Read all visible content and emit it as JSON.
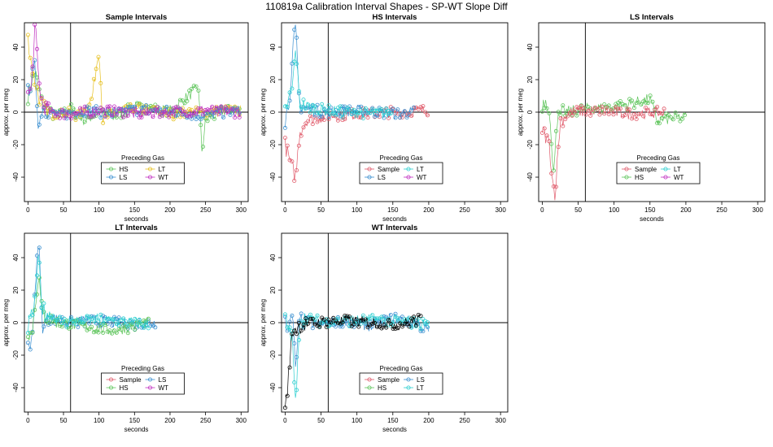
{
  "title": "110819a   Calibration Interval Shapes - SP-WT Slope Diff",
  "colors": {
    "Sample": "#e05a6a",
    "HS": "#5dc45a",
    "LS": "#3a8fd0",
    "LT": "#2ccfd0",
    "WT": "#c030c0",
    "WTline": "#000000",
    "LTyellow": "#e6c020"
  },
  "chart_data": [
    {
      "type": "scatter",
      "title": "Sample Intervals",
      "xlabel": "seconds",
      "ylabel": "approx. per meg",
      "xlim": [
        -5,
        310
      ],
      "ylim": [
        -55,
        55
      ],
      "xticks": [
        0,
        50,
        100,
        150,
        200,
        250,
        300
      ],
      "yticks": [
        -40,
        -20,
        0,
        20,
        40
      ],
      "hline": 0,
      "vline": 60,
      "legend": {
        "title": "Preceding Gas",
        "entries": [
          "HS",
          "LT",
          "LS",
          "WT"
        ],
        "position": "bottom-center"
      },
      "series": [
        {
          "name": "HS",
          "x": [
            0,
            5,
            10,
            15,
            20,
            30,
            40,
            60,
            80,
            100,
            120,
            150,
            200,
            240,
            245,
            250,
            280,
            300
          ],
          "y": [
            10,
            18,
            25,
            14,
            5,
            0,
            -3,
            2,
            -5,
            0,
            -3,
            3,
            1,
            15,
            -25,
            -5,
            2,
            0
          ]
        },
        {
          "name": "LT",
          "x": [
            0,
            5,
            10,
            15,
            20,
            30,
            50,
            70,
            90,
            100,
            105,
            120,
            150,
            200,
            250,
            300
          ],
          "y": [
            45,
            30,
            18,
            10,
            4,
            -1,
            0,
            -2,
            8,
            40,
            -5,
            0,
            2,
            -1,
            0,
            1
          ]
        },
        {
          "name": "LS",
          "x": [
            0,
            5,
            10,
            15,
            20,
            40,
            80,
            120,
            160,
            200,
            250,
            300
          ],
          "y": [
            12,
            20,
            28,
            -10,
            3,
            -2,
            1,
            -1,
            2,
            0,
            -2,
            1
          ]
        },
        {
          "name": "WT",
          "x": [
            0,
            5,
            10,
            15,
            20,
            30,
            60,
            100,
            150,
            200,
            250,
            300
          ],
          "y": [
            10,
            15,
            55,
            20,
            5,
            0,
            -1,
            1,
            -1,
            0,
            1,
            0
          ]
        }
      ]
    },
    {
      "type": "scatter",
      "title": "HS Intervals",
      "xlabel": "seconds",
      "ylabel": "approx. per meg",
      "xlim": [
        -5,
        310
      ],
      "ylim": [
        -55,
        55
      ],
      "xticks": [
        0,
        50,
        100,
        150,
        200,
        250,
        300
      ],
      "yticks": [
        -40,
        -20,
        0,
        20,
        40
      ],
      "hline": 0,
      "vline": 60,
      "legend": {
        "title": "Preceding Gas",
        "entries": [
          "Sample",
          "LT",
          "LS",
          "WT"
        ],
        "position": "bottom-center"
      },
      "series": [
        {
          "name": "Sample",
          "x": [
            0,
            5,
            10,
            15,
            20,
            30,
            60,
            100,
            150,
            200
          ],
          "y": [
            -20,
            -28,
            -35,
            -40,
            -12,
            -5,
            -2,
            -1,
            0,
            1
          ]
        },
        {
          "name": "LS",
          "x": [
            0,
            5,
            10,
            12,
            15,
            18,
            20,
            30,
            60,
            100,
            150,
            180
          ],
          "y": [
            -5,
            5,
            30,
            45,
            52,
            20,
            5,
            2,
            0,
            1,
            -1,
            0
          ]
        },
        {
          "name": "LT",
          "x": [
            0,
            10,
            15,
            20,
            40,
            80,
            150
          ],
          "y": [
            0,
            15,
            40,
            5,
            2,
            0,
            -1
          ]
        }
      ]
    },
    {
      "type": "scatter",
      "title": "LS Intervals",
      "xlabel": "seconds",
      "ylabel": "approx. per meg",
      "xlim": [
        -5,
        310
      ],
      "ylim": [
        -55,
        55
      ],
      "xticks": [
        0,
        50,
        100,
        150,
        200,
        250,
        300
      ],
      "yticks": [
        -40,
        -20,
        0,
        20,
        40
      ],
      "hline": 0,
      "vline": 60,
      "legend": {
        "title": "Preceding Gas",
        "entries": [
          "Sample",
          "LT",
          "HS",
          "WT"
        ],
        "position": "bottom-center"
      },
      "series": [
        {
          "name": "HS",
          "x": [
            0,
            5,
            10,
            15,
            20,
            30,
            60,
            100,
            150,
            160,
            200
          ],
          "y": [
            5,
            8,
            2,
            -40,
            -5,
            0,
            2,
            3,
            8,
            -5,
            -3
          ]
        },
        {
          "name": "Sample",
          "x": [
            0,
            5,
            10,
            15,
            18,
            25,
            40,
            80,
            120,
            170
          ],
          "y": [
            -10,
            -15,
            -20,
            -45,
            -50,
            -5,
            0,
            1,
            -1,
            0
          ]
        }
      ]
    },
    {
      "type": "scatter",
      "title": "LT Intervals",
      "xlabel": "seconds",
      "ylabel": "approx. per meg",
      "xlim": [
        -5,
        310
      ],
      "ylim": [
        -55,
        55
      ],
      "xticks": [
        0,
        50,
        100,
        150,
        200,
        250,
        300
      ],
      "yticks": [
        -40,
        -20,
        0,
        20,
        40
      ],
      "hline": 0,
      "vline": 60,
      "legend": {
        "title": "Preceding Gas",
        "entries": [
          "Sample",
          "LS",
          "HS",
          "WT"
        ],
        "position": "bottom-center"
      },
      "series": [
        {
          "name": "LS",
          "x": [
            0,
            5,
            10,
            15,
            20,
            30,
            60,
            100,
            150,
            180
          ],
          "y": [
            -15,
            -10,
            15,
            55,
            -2,
            3,
            0,
            1,
            -1,
            0
          ]
        },
        {
          "name": "HS",
          "x": [
            0,
            5,
            10,
            15,
            20,
            40,
            80,
            120,
            170
          ],
          "y": [
            -5,
            -8,
            10,
            30,
            5,
            0,
            -2,
            -5,
            0
          ]
        },
        {
          "name": "LT",
          "x": [
            0,
            10,
            15,
            20,
            50,
            100,
            170
          ],
          "y": [
            -3,
            12,
            40,
            8,
            0,
            2,
            -1
          ]
        }
      ]
    },
    {
      "type": "scatter",
      "title": "WT Intervals",
      "xlabel": "seconds",
      "ylabel": "approx. per meg",
      "xlim": [
        -5,
        310
      ],
      "ylim": [
        -55,
        55
      ],
      "xticks": [
        0,
        50,
        100,
        150,
        200,
        250,
        300
      ],
      "yticks": [
        -40,
        -20,
        0,
        20,
        40
      ],
      "hline": 0,
      "vline": 60,
      "legend": {
        "title": "Preceding Gas",
        "entries": [
          "Sample",
          "LS",
          "HS",
          "LT"
        ],
        "position": "bottom-center"
      },
      "series": [
        {
          "name": "LS",
          "x": [
            0,
            5,
            10,
            15,
            20,
            40,
            80,
            120,
            150,
            180,
            200
          ],
          "y": [
            3,
            -5,
            5,
            -30,
            2,
            -1,
            1,
            -2,
            3,
            0,
            -5
          ]
        },
        {
          "name": "LT",
          "x": [
            0,
            10,
            15,
            20,
            60,
            120,
            200
          ],
          "y": [
            2,
            -10,
            -55,
            3,
            0,
            2,
            -1
          ]
        },
        {
          "name": "WT",
          "x": [
            0,
            5,
            10,
            20,
            40,
            80,
            120,
            160,
            190
          ],
          "y": [
            -55,
            -32,
            -5,
            -2,
            0,
            1,
            0,
            -1,
            2
          ]
        }
      ]
    }
  ]
}
